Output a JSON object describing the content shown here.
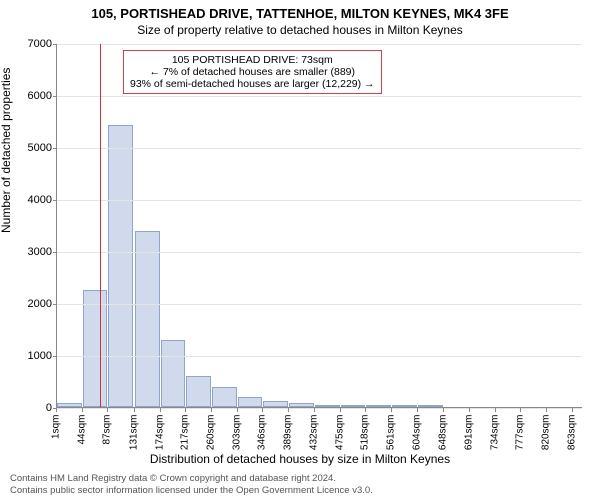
{
  "title_line1": "105, PORTISHEAD DRIVE, TATTENHOE, MILTON KEYNES, MK4 3FE",
  "title_line2": "Size of property relative to detached houses in Milton Keynes",
  "ylabel": "Number of detached properties",
  "xlabel": "Distribution of detached houses by size in Milton Keynes",
  "footer_line1": "Contains HM Land Registry data © Crown copyright and database right 2024.",
  "footer_line2": "Contains public sector information licensed under the Open Government Licence v3.0.",
  "chart": {
    "type": "histogram",
    "background_color": "#ffffff",
    "grid_color": "#e4e4e4",
    "axis_color": "#888888",
    "bar_fill": "rgba(120,150,200,0.35)",
    "bar_border": "rgba(100,130,180,0.6)",
    "marker_color": "#cc3333",
    "marker_x": 73,
    "ymax": 7000,
    "ytick_step": 1000,
    "yticks": [
      0,
      1000,
      2000,
      3000,
      4000,
      5000,
      6000,
      7000
    ],
    "xticks": [
      1,
      44,
      87,
      131,
      174,
      217,
      260,
      303,
      346,
      389,
      432,
      475,
      518,
      561,
      604,
      648,
      691,
      734,
      777,
      820,
      863
    ],
    "xtick_labels": [
      "1sqm",
      "44sqm",
      "87sqm",
      "131sqm",
      "174sqm",
      "217sqm",
      "260sqm",
      "303sqm",
      "346sqm",
      "389sqm",
      "432sqm",
      "475sqm",
      "518sqm",
      "561sqm",
      "604sqm",
      "648sqm",
      "691sqm",
      "734sqm",
      "777sqm",
      "820sqm",
      "863sqm"
    ],
    "xmin": 1,
    "xmax": 880,
    "bar_width_sqm": 43,
    "bars": [
      {
        "x": 1,
        "y": 80
      },
      {
        "x": 44,
        "y": 2250
      },
      {
        "x": 87,
        "y": 5420
      },
      {
        "x": 131,
        "y": 3380
      },
      {
        "x": 174,
        "y": 1280
      },
      {
        "x": 217,
        "y": 600
      },
      {
        "x": 260,
        "y": 380
      },
      {
        "x": 303,
        "y": 190
      },
      {
        "x": 346,
        "y": 120
      },
      {
        "x": 389,
        "y": 70
      },
      {
        "x": 432,
        "y": 25
      },
      {
        "x": 475,
        "y": 10
      },
      {
        "x": 518,
        "y": 8
      },
      {
        "x": 561,
        "y": 5
      },
      {
        "x": 604,
        "y": 4
      }
    ]
  },
  "annotation": {
    "line1": "105 PORTISHEAD DRIVE: 73sqm",
    "line2": "← 7% of detached houses are smaller (889)",
    "line3": "93% of semi-detached houses are larger (12,229) →"
  }
}
